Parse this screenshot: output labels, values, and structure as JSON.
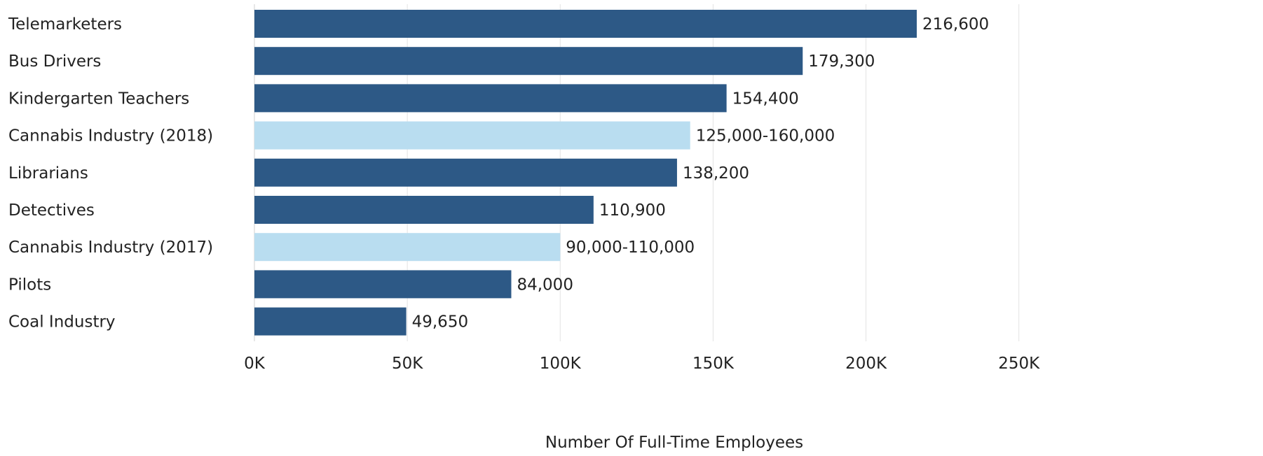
{
  "chart_data": {
    "type": "bar",
    "orientation": "horizontal",
    "title": "",
    "xlabel": "Number Of Full-Time Employees",
    "ylabel": "",
    "xlim": [
      0,
      270000
    ],
    "x_ticks": [
      0,
      50000,
      100000,
      150000,
      200000,
      250000
    ],
    "x_tick_labels": [
      "0K",
      "50K",
      "100K",
      "150K",
      "200K",
      "250K"
    ],
    "grid": "vertical",
    "legend": "none",
    "colors": {
      "dark": "#2d5986",
      "light": "#b9ddf0"
    },
    "categories": [
      "Telemarketers",
      "Bus Drivers",
      "Kindergarten Teachers",
      "Cannabis Industry (2018)",
      "Librarians",
      "Detectives",
      "Cannabis Industry (2017)",
      "Pilots",
      "Coal Industry"
    ],
    "values": [
      216600,
      179300,
      154400,
      142500,
      138200,
      110900,
      100000,
      84000,
      49650
    ],
    "value_labels": [
      "216,600",
      "179,300",
      "154,400",
      "125,000-160,000",
      "138,200",
      "110,900",
      "90,000-110,000",
      "84,000",
      "49,650"
    ],
    "highlight": [
      false,
      false,
      false,
      true,
      false,
      false,
      true,
      false,
      false
    ]
  }
}
